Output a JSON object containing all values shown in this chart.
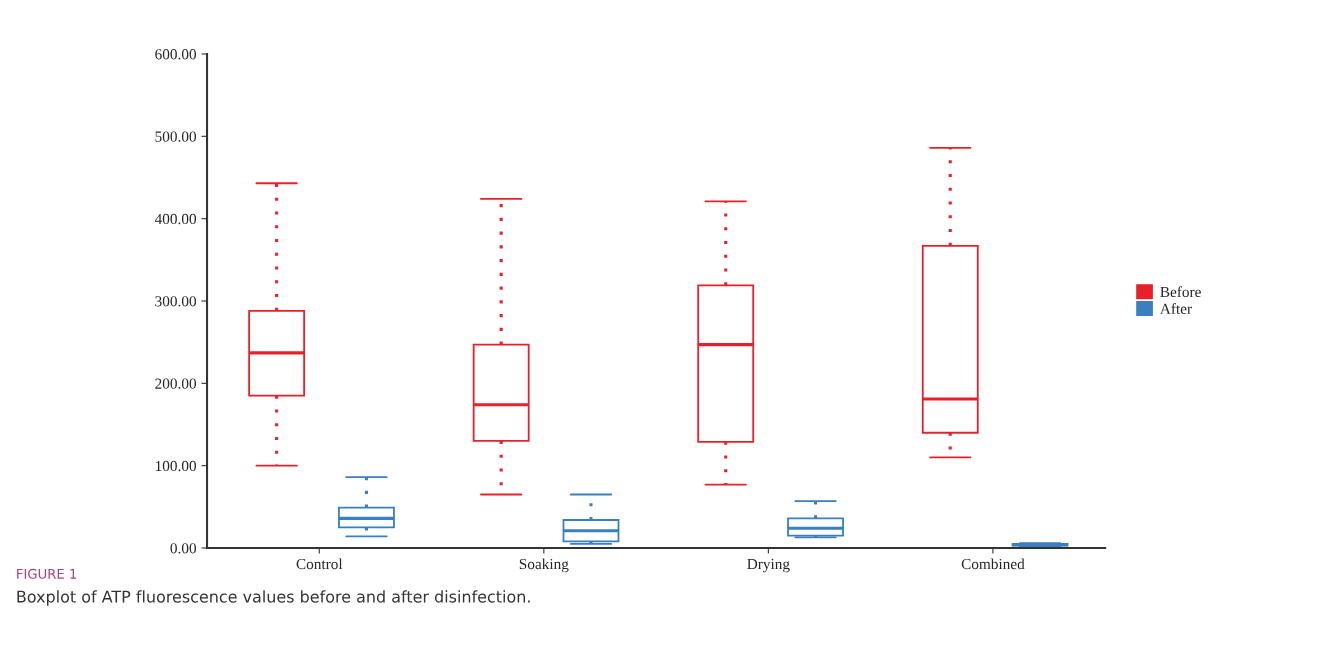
{
  "chart_data": {
    "type": "box",
    "categories": [
      "Control",
      "Soaking",
      "Drying",
      "Combined"
    ],
    "series": [
      {
        "name": "Before",
        "color": "#e8202a",
        "boxes": [
          {
            "low": 100,
            "q1": 185,
            "median": 237,
            "q3": 288,
            "high": 443
          },
          {
            "low": 65,
            "q1": 130,
            "median": 174,
            "q3": 247,
            "high": 424
          },
          {
            "low": 77,
            "q1": 129,
            "median": 247,
            "q3": 319,
            "high": 421
          },
          {
            "low": 110,
            "q1": 140,
            "median": 181,
            "q3": 367,
            "high": 486
          }
        ]
      },
      {
        "name": "After",
        "color": "#3a7fc1",
        "boxes": [
          {
            "low": 14,
            "q1": 25,
            "median": 36,
            "q3": 49,
            "high": 86
          },
          {
            "low": 5,
            "q1": 8,
            "median": 21,
            "q3": 34,
            "high": 65
          },
          {
            "low": 13,
            "q1": 15,
            "median": 24,
            "q3": 36,
            "high": 57
          },
          {
            "low": 2,
            "q1": 3,
            "median": 4,
            "q3": 5,
            "high": 6
          }
        ]
      }
    ],
    "ylim": [
      0,
      600
    ],
    "yticks": [
      {
        "value": 0,
        "label": "0.00"
      },
      {
        "value": 100,
        "label": "100.00"
      },
      {
        "value": 200,
        "label": "200.00"
      },
      {
        "value": 300,
        "label": "300.00"
      },
      {
        "value": 400,
        "label": "400.00"
      },
      {
        "value": 500,
        "label": "500.00"
      },
      {
        "value": 600,
        "label": "600.00"
      }
    ],
    "legend": "right",
    "grid": false,
    "annotations": [
      "FIGURE 1",
      "Boxplot of ATP fluorescence values before and after disinfection."
    ]
  }
}
